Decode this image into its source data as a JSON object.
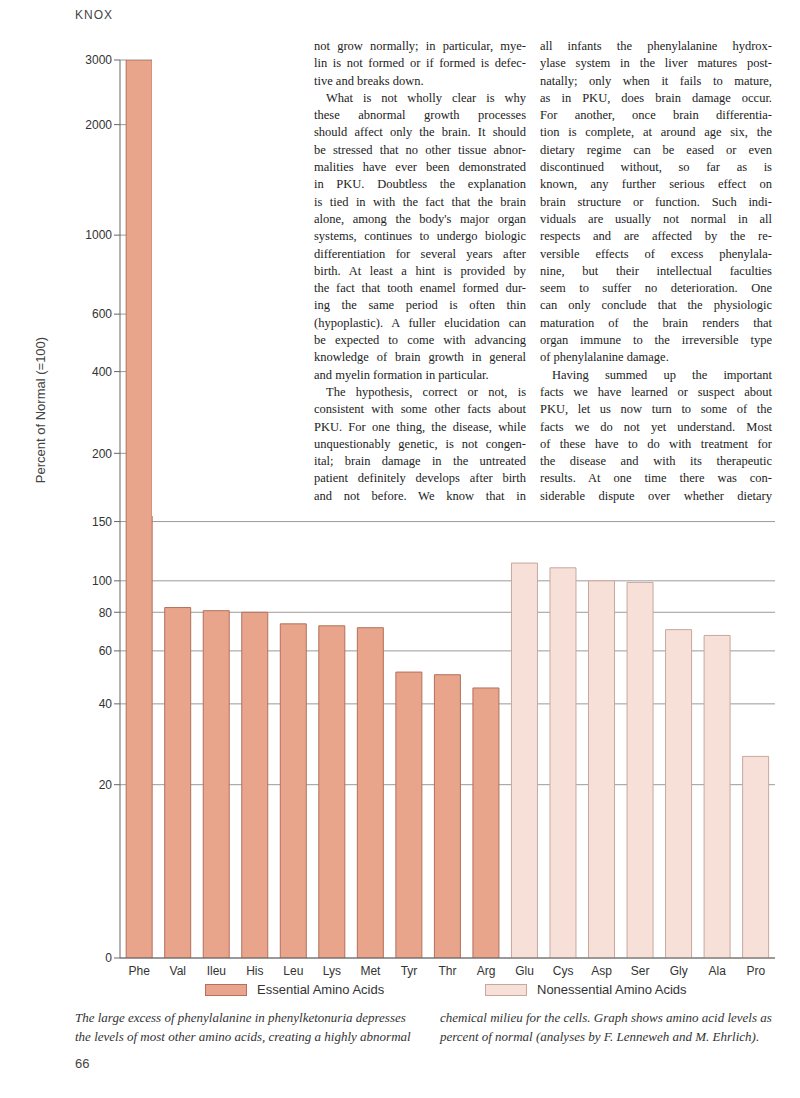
{
  "header": "KNOX",
  "text_columns": [
    {
      "paragraphs": [
        [
          "not grow normally; in particular, mye-",
          "lin is not formed or if formed is defec-",
          "tive and breaks down."
        ],
        [
          "What is not wholly clear is why",
          "these abnormal growth processes",
          "should affect only the brain. It should",
          "be stressed that no other tissue abnor-",
          "malities have ever been demonstrated",
          "in PKU. Doubtless the explanation",
          "is tied in with the fact that the brain",
          "alone, among the body's major organ",
          "systems, continues to undergo biologic",
          "differentiation for several years after",
          "birth. At least a hint is provided by",
          "the fact that tooth enamel formed dur-",
          "ing the same period is often thin",
          "(hypoplastic). A fuller elucidation can",
          "be expected to come with advancing",
          "knowledge of brain growth in general",
          "and myelin formation in particular."
        ],
        [
          "The hypothesis, correct or not, is",
          "consistent with some other facts about",
          "PKU. For one thing, the disease, while",
          "unquestionably genetic, is not congen-",
          "ital; brain damage in the untreated",
          "patient definitely develops after birth",
          "and not before. We know that in"
        ]
      ]
    },
    {
      "paragraphs": [
        [
          "all infants the phenylalanine hydrox-",
          "ylase system in the liver matures post-",
          "natally; only when it fails to mature,",
          "as in PKU, does brain damage occur.",
          "For another, once brain differentia-",
          "tion is complete, at around age six, the",
          "dietary regime can be eased or even",
          "discontinued without, so far as is",
          "known, any further serious effect on",
          "brain structure or function. Such indi-",
          "viduals are usually not normal in all",
          "respects and are affected by the re-",
          "versible effects of excess phenylala-",
          "nine, but their intellectual faculties",
          "seem to suffer no deterioration. One",
          "can only conclude that the physiologic",
          "maturation of the brain renders that",
          "organ immune to the irreversible type",
          "of phenylalanine damage."
        ],
        [
          "Having summed up the important",
          "facts we have learned or suspect about",
          "PKU, let us now turn to some of the",
          "facts we do not yet understand. Most",
          "of these have to do with treatment for",
          "the disease and with its therapeutic",
          "results. At one time there was con-",
          "siderable dispute over whether dietary"
        ]
      ]
    }
  ],
  "chart_data": {
    "type": "bar",
    "y_label": "Percent of Normal (=100)",
    "categories": [
      "Phe",
      "Val",
      "Ileu",
      "His",
      "Leu",
      "Lys",
      "Met",
      "Tyr",
      "Thr",
      "Arg",
      "Glu",
      "Cys",
      "Asp",
      "Ser",
      "Gly",
      "Ala",
      "Pro"
    ],
    "series": [
      {
        "name": "Essential Amino Acids",
        "color": "#e9a58c",
        "values": [
          3000,
          83,
          81,
          80,
          74,
          73,
          72,
          52,
          51,
          46,
          null,
          null,
          null,
          null,
          null,
          null,
          null
        ]
      },
      {
        "name": "Nonessential Amino Acids",
        "color": "#f7e0d8",
        "values": [
          null,
          null,
          null,
          null,
          null,
          null,
          null,
          null,
          null,
          null,
          115,
          111,
          100,
          99,
          71,
          68,
          27
        ]
      }
    ],
    "ylim": [
      0,
      3000
    ],
    "yticks": [
      0,
      20,
      40,
      60,
      80,
      100,
      150,
      200,
      400,
      600,
      1000,
      2000,
      3000
    ],
    "grid": true
  },
  "caption": [
    [
      "The large excess of phenylalanine in phenylketonuria depresses",
      "the levels of most other amino acids, creating a highly abnormal"
    ],
    [
      "chemical milieu for the cells. Graph shows amino acid levels as",
      "percent of normal (analyses by F. Lenneweh and M. Ehrlich)."
    ]
  ],
  "page_number": "66"
}
